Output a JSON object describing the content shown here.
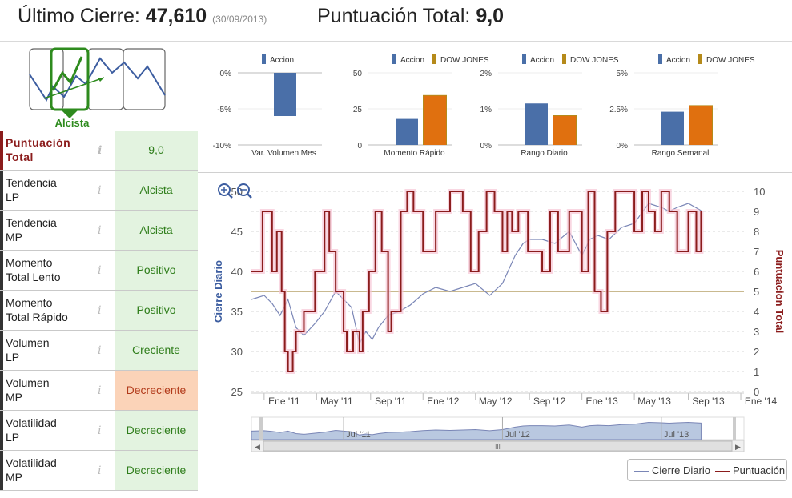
{
  "header": {
    "last_close_label": "Último Cierre:",
    "last_close_value": "47,610",
    "last_close_date": "(30/09/2013)",
    "score_label": "Puntuación Total:",
    "score_value": "9,0"
  },
  "trend": {
    "label": "Alcista",
    "accent_color": "#2e8b1e"
  },
  "table": {
    "rows": [
      {
        "label_line1": "Puntuación",
        "label_line2": "Total",
        "value": "9,0",
        "status": "positive"
      },
      {
        "label_line1": "Tendencia",
        "label_line2": "LP",
        "value": "Alcista",
        "status": "positive"
      },
      {
        "label_line1": "Tendencia",
        "label_line2": "MP",
        "value": "Alcista",
        "status": "positive"
      },
      {
        "label_line1": "Momento",
        "label_line2": "Total Lento",
        "value": "Positivo",
        "status": "positive"
      },
      {
        "label_line1": "Momento",
        "label_line2": "Total Rápido",
        "value": "Positivo",
        "status": "positive"
      },
      {
        "label_line1": "Volumen",
        "label_line2": "LP",
        "value": "Creciente",
        "status": "positive"
      },
      {
        "label_line1": "Volumen",
        "label_line2": "MP",
        "value": "Decreciente",
        "status": "negative"
      },
      {
        "label_line1": "Volatilidad",
        "label_line2": "LP",
        "value": "Decreciente",
        "status": "positive"
      },
      {
        "label_line1": "Volatilidad",
        "label_line2": "MP",
        "value": "Decreciente",
        "status": "positive"
      }
    ]
  },
  "colors": {
    "accion": "#4a6fa8",
    "dow": "#e0700f",
    "dow_legend": "#b58a1a",
    "cierre_line": "#7a86b6",
    "puntuacion_line": "#8b1c1c",
    "ref_line": "#c9b98f",
    "navigator_fill": "#b9c8e0"
  },
  "chart_data": [
    {
      "type": "bar",
      "title": "Var. Volumen Mes",
      "legend": [
        "Accion"
      ],
      "series": [
        {
          "name": "Accion",
          "values": [
            -6
          ]
        }
      ],
      "yticks": [
        "0%",
        "-5%",
        "-10%"
      ],
      "ylim": [
        -10,
        0
      ]
    },
    {
      "type": "bar",
      "title": "Momento Rápido",
      "legend": [
        "Accion",
        "DOW JONES"
      ],
      "series": [
        {
          "name": "Accion",
          "values": [
            18
          ]
        },
        {
          "name": "DOW JONES",
          "values": [
            34
          ]
        }
      ],
      "yticks": [
        "50",
        "25",
        "0"
      ],
      "ylim": [
        0,
        50
      ]
    },
    {
      "type": "bar",
      "title": "Rango Diario",
      "legend": [
        "Accion",
        "DOW JONES"
      ],
      "series": [
        {
          "name": "Accion",
          "values": [
            1.15
          ]
        },
        {
          "name": "DOW JONES",
          "values": [
            0.8
          ]
        }
      ],
      "yticks": [
        "2%",
        "1%",
        "0%"
      ],
      "ylim": [
        0,
        2
      ]
    },
    {
      "type": "bar",
      "title": "Rango Semanal",
      "legend": [
        "Accion",
        "DOW JONES"
      ],
      "series": [
        {
          "name": "Accion",
          "values": [
            2.3
          ]
        },
        {
          "name": "DOW JONES",
          "values": [
            2.7
          ]
        }
      ],
      "yticks": [
        "5%",
        "2.5%",
        "0%"
      ],
      "ylim": [
        0,
        5
      ]
    },
    {
      "type": "line",
      "title": "",
      "ylabel": "Cierre Diario",
      "y2label": "Puntuacion Total",
      "ylim": [
        25,
        50
      ],
      "y2lim": [
        0,
        10
      ],
      "yticks": [
        "50",
        "45",
        "40",
        "35",
        "30",
        "25"
      ],
      "y2ticks": [
        "10",
        "9",
        "8",
        "7",
        "6",
        "5",
        "4",
        "3",
        "2",
        "1",
        "0"
      ],
      "xticks": [
        "Ene '11",
        "May '11",
        "Sep '11",
        "Ene '12",
        "May '12",
        "Sep '12",
        "Ene '13",
        "May '13",
        "Sep '13",
        "Ene '14"
      ],
      "xlim": [
        2010.92,
        2014.02
      ],
      "reference_line": 5,
      "series": [
        {
          "name": "Cierre Diario",
          "x": [
            2010.92,
            2011.0,
            2011.05,
            2011.1,
            2011.15,
            2011.2,
            2011.25,
            2011.32,
            2011.38,
            2011.45,
            2011.5,
            2011.55,
            2011.6,
            2011.64,
            2011.68,
            2011.72,
            2011.78,
            2011.85,
            2011.92,
            2012.0,
            2012.08,
            2012.17,
            2012.25,
            2012.33,
            2012.42,
            2012.5,
            2012.58,
            2012.63,
            2012.67,
            2012.75,
            2012.83,
            2012.92,
            2013.0,
            2013.05,
            2013.1,
            2013.17,
            2013.25,
            2013.33,
            2013.42,
            2013.5,
            2013.55,
            2013.6,
            2013.67,
            2013.75
          ],
          "y": [
            36.5,
            37.0,
            36.0,
            34.5,
            36.5,
            33.0,
            32.0,
            33.5,
            35.0,
            37.5,
            36.5,
            35.5,
            31.0,
            32.5,
            31.5,
            33.0,
            34.5,
            35.0,
            35.8,
            37.2,
            38.0,
            37.5,
            38.0,
            38.5,
            37.0,
            38.5,
            42.0,
            43.5,
            44.0,
            44.0,
            43.5,
            45.0,
            42.0,
            44.0,
            44.5,
            44.0,
            45.5,
            46.0,
            48.5,
            48.0,
            47.5,
            48.0,
            48.5,
            47.6
          ]
        },
        {
          "name": "Puntuación",
          "x": [
            2010.92,
            2010.99,
            2011.0,
            2011.05,
            2011.08,
            2011.11,
            2011.13,
            2011.15,
            2011.18,
            2011.2,
            2011.25,
            2011.32,
            2011.38,
            2011.41,
            2011.45,
            2011.5,
            2011.52,
            2011.56,
            2011.6,
            2011.62,
            2011.66,
            2011.7,
            2011.74,
            2011.78,
            2011.8,
            2011.86,
            2011.9,
            2011.94,
            2012.0,
            2012.08,
            2012.17,
            2012.25,
            2012.3,
            2012.35,
            2012.4,
            2012.45,
            2012.5,
            2012.53,
            2012.56,
            2012.6,
            2012.66,
            2012.75,
            2012.8,
            2012.85,
            2012.92,
            2013.0,
            2013.04,
            2013.08,
            2013.12,
            2013.16,
            2013.21,
            2013.25,
            2013.33,
            2013.38,
            2013.42,
            2013.46,
            2013.5,
            2013.55,
            2013.6,
            2013.67,
            2013.72,
            2013.75
          ],
          "y": [
            6,
            9,
            9,
            6,
            8,
            5,
            2,
            1,
            2,
            3,
            4,
            6,
            9,
            7,
            5,
            3,
            2,
            3,
            2,
            4,
            6,
            9,
            7,
            3,
            4,
            9,
            10,
            9,
            7,
            9,
            10,
            9,
            6,
            8,
            10,
            9,
            7,
            9,
            8,
            9,
            7,
            6,
            9,
            7,
            9,
            6,
            10,
            5,
            4,
            8,
            10,
            10,
            8,
            10,
            9,
            8,
            10,
            9,
            7,
            9,
            7,
            9
          ]
        }
      ],
      "navigator": {
        "labels": [
          "Jul '11",
          "Jul '12",
          "Jul '13"
        ],
        "scroll_grip": "III"
      }
    }
  ],
  "legend": {
    "cierre": "Cierre Diario",
    "puntuacion": "Puntuación"
  }
}
